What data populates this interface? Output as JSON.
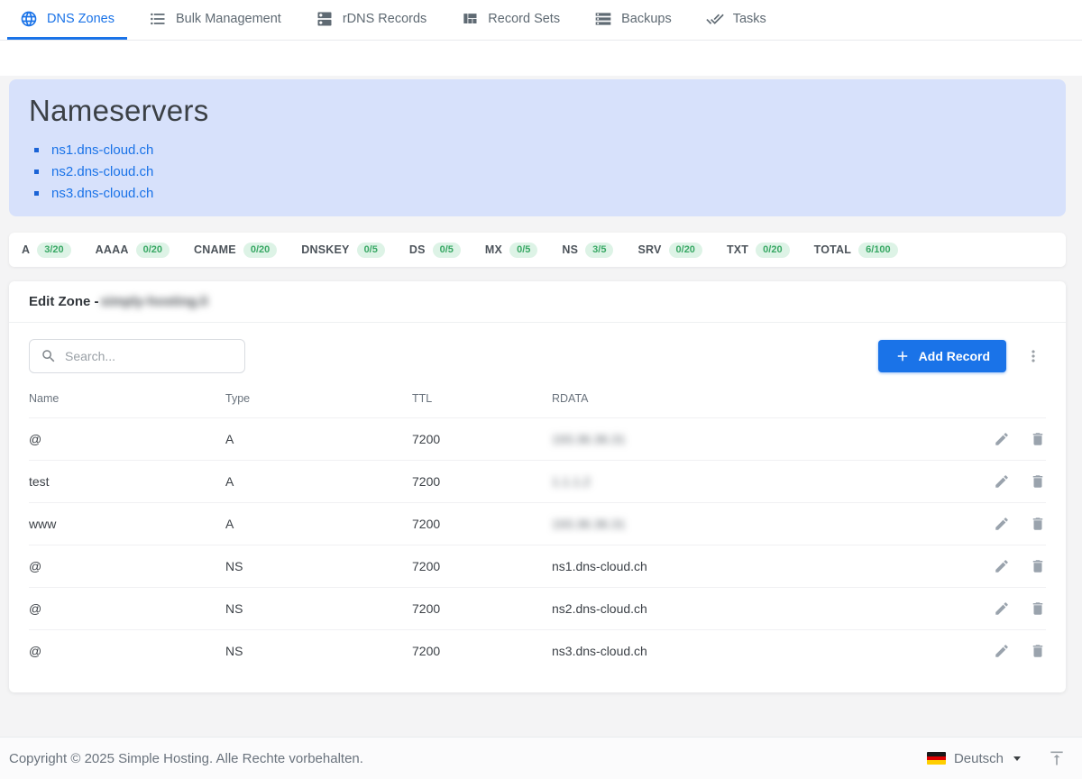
{
  "tabs": [
    {
      "label": "DNS Zones",
      "icon": "globe",
      "active": true
    },
    {
      "label": "Bulk Management",
      "icon": "list",
      "active": false
    },
    {
      "label": "rDNS Records",
      "icon": "dns",
      "active": false
    },
    {
      "label": "Record Sets",
      "icon": "grid",
      "active": false
    },
    {
      "label": "Backups",
      "icon": "storage",
      "active": false
    },
    {
      "label": "Tasks",
      "icon": "done-all",
      "active": false
    }
  ],
  "nameservers": {
    "title": "Nameservers",
    "items": [
      "ns1.dns-cloud.ch",
      "ns2.dns-cloud.ch",
      "ns3.dns-cloud.ch"
    ]
  },
  "record_counts": [
    {
      "label": "A",
      "count": "3/20"
    },
    {
      "label": "AAAA",
      "count": "0/20"
    },
    {
      "label": "CNAME",
      "count": "0/20"
    },
    {
      "label": "DNSKEY",
      "count": "0/5"
    },
    {
      "label": "DS",
      "count": "0/5"
    },
    {
      "label": "MX",
      "count": "0/5"
    },
    {
      "label": "NS",
      "count": "3/5"
    },
    {
      "label": "SRV",
      "count": "0/20"
    },
    {
      "label": "TXT",
      "count": "0/20"
    },
    {
      "label": "TOTAL",
      "count": "6/100"
    }
  ],
  "zone": {
    "header_prefix": "Edit Zone - ",
    "name_redacted": "simply-hosting.li"
  },
  "toolbar": {
    "search_placeholder": "Search...",
    "add_record_label": "Add Record"
  },
  "table": {
    "columns": [
      "Name",
      "Type",
      "TTL",
      "RDATA"
    ],
    "rows": [
      {
        "name": "@",
        "type": "A",
        "ttl": "7200",
        "rdata": "193.36.36.31",
        "rdata_redacted": true
      },
      {
        "name": "test",
        "type": "A",
        "ttl": "7200",
        "rdata": "1.1.1.2",
        "rdata_redacted": true
      },
      {
        "name": "www",
        "type": "A",
        "ttl": "7200",
        "rdata": "193.36.36.31",
        "rdata_redacted": true
      },
      {
        "name": "@",
        "type": "NS",
        "ttl": "7200",
        "rdata": "ns1.dns-cloud.ch",
        "rdata_redacted": false
      },
      {
        "name": "@",
        "type": "NS",
        "ttl": "7200",
        "rdata": "ns2.dns-cloud.ch",
        "rdata_redacted": false
      },
      {
        "name": "@",
        "type": "NS",
        "ttl": "7200",
        "rdata": "ns3.dns-cloud.ch",
        "rdata_redacted": false
      }
    ]
  },
  "footer": {
    "copyright": "Copyright © 2025 Simple Hosting. Alle Rechte vorbehalten.",
    "language": "Deutsch"
  },
  "colors": {
    "primary": "#1a73e8",
    "panel_bg": "#d7e1fb",
    "badge_bg": "#ddf3e6",
    "badge_text": "#38a864"
  }
}
